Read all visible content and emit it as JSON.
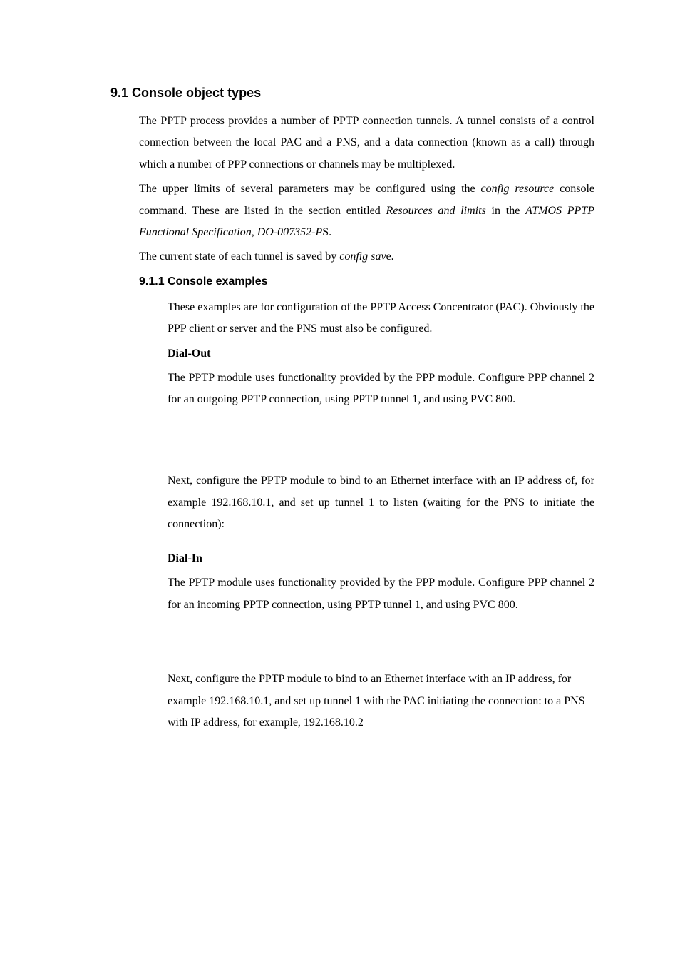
{
  "colors": {
    "background": "#ffffff",
    "text": "#000000"
  },
  "typography": {
    "heading_font": "Arial, Helvetica, sans-serif",
    "body_font": "\"Times New Roman\", Times, serif",
    "h1_fontsize": 18,
    "h2_fontsize": 16,
    "h3_fontsize": 16,
    "body_fontsize": 16,
    "line_height": 1.9,
    "text_align": "justify"
  },
  "section": {
    "number": "9.1",
    "title": "Console object types",
    "para1": "The PPTP process provides a number of PPTP connection tunnels. A tunnel consists of a control connection between the local PAC and a PNS, and a data connection (known as a call) through which a number of PPP connections or channels may be multiplexed.",
    "para2_pre": "The upper limits of several parameters may be configured using the ",
    "para2_em1": "config resource",
    "para2_mid": " console command. These are listed in the section entitled ",
    "para2_em2": "Resources and limits",
    "para2_mid2": " in the ",
    "para2_em3": "ATMOS PPTP Functional Specification, DO-007352-P",
    "para2_post": "S.",
    "para3_pre": "The current state of each tunnel is saved by ",
    "para3_em": "config sav",
    "para3_post": "e."
  },
  "subsection": {
    "number": "9.1.1",
    "title": "Console examples",
    "intro": "These examples are for configuration of the PPTP Access Concentrator (PAC). Obviously the PPP client or server and the PNS must also be configured.",
    "dialout": {
      "heading": "Dial-Out",
      "para1": "The PPTP module uses functionality provided by the PPP module. Configure PPP channel 2 for an outgoing PPTP connection, using PPTP tunnel 1, and using PVC 800.",
      "para2": "Next, configure the PPTP module to bind to an Ethernet interface with an IP address of, for example 192.168.10.1, and set up tunnel 1 to listen (waiting for the PNS to initiate the connection):"
    },
    "dialin": {
      "heading": "Dial-In",
      "para1": "The PPTP module uses functionality provided by the PPP module. Configure PPP channel 2 for an incoming PPTP connection, using PPTP tunnel 1, and using PVC 800.",
      "para2": "Next, configure the PPTP module to bind to an Ethernet interface with an IP address, for example 192.168.10.1, and set up tunnel 1 with the PAC initiating the connection: to a PNS with IP address, for example, 192.168.10.2"
    }
  }
}
